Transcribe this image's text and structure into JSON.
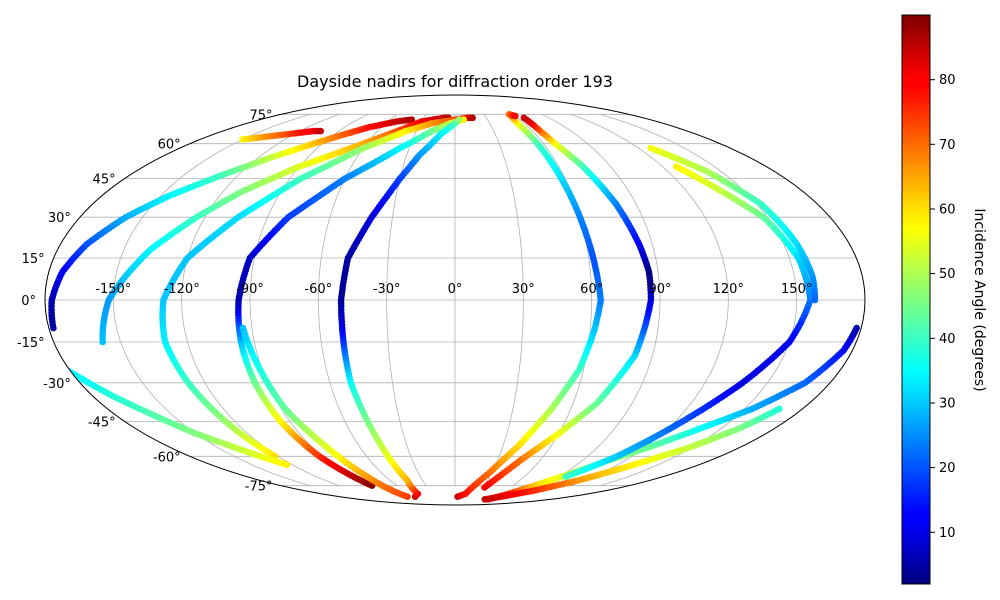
{
  "chart_data": {
    "type": "scatter",
    "title": "Dayside nadirs for diffraction order 193",
    "projection": "mollweide",
    "grid": true,
    "longitude_ticks": [
      -150,
      -120,
      -90,
      -60,
      -30,
      0,
      30,
      60,
      90,
      120,
      150
    ],
    "latitude_ticks": [
      -75,
      -60,
      -45,
      -30,
      -15,
      0,
      15,
      30,
      45,
      60,
      75
    ],
    "longitude_tick_labels": [
      "-150°",
      "-120°",
      "-90°",
      "-60°",
      "-30°",
      "0°",
      "30°",
      "60°",
      "90°",
      "120°",
      "150°"
    ],
    "latitude_tick_labels": [
      "-75°",
      "-60°",
      "-45°",
      "-30°",
      "-15°",
      "0°",
      "15°",
      "30°",
      "45°",
      "60°",
      "75°"
    ],
    "xlabel": "",
    "ylabel": "",
    "colorbar": {
      "label": "Incidence Angle (degrees)",
      "range": [
        2,
        90
      ],
      "colormap": "jet",
      "ticks": [
        10,
        20,
        30,
        40,
        50,
        60,
        70,
        80
      ],
      "tick_labels": [
        "10",
        "20",
        "30",
        "40",
        "50",
        "60",
        "70",
        "80"
      ]
    },
    "tracks": [
      {
        "points": [
          [
            -178,
            -10,
            5
          ],
          [
            -177,
            0,
            6
          ],
          [
            -174,
            10,
            12
          ],
          [
            -168,
            20,
            20
          ],
          [
            -158,
            30,
            28
          ],
          [
            -146,
            38,
            34
          ],
          [
            -130,
            46,
            40
          ],
          [
            -112,
            54,
            52
          ],
          [
            -96,
            60,
            62
          ],
          [
            -84,
            64,
            70
          ],
          [
            -70,
            68,
            78
          ],
          [
            -52,
            71,
            84
          ],
          [
            -40,
            72,
            86
          ]
        ]
      },
      {
        "points": [
          [
            -150,
            62,
            58
          ],
          [
            -140,
            63,
            65
          ],
          [
            -130,
            64,
            70
          ],
          [
            -120,
            65,
            76
          ],
          [
            -110,
            66,
            80
          ],
          [
            -104,
            66,
            84
          ]
        ]
      },
      {
        "points": [
          [
            -158,
            -15,
            30
          ],
          [
            -152,
            0,
            26
          ],
          [
            -146,
            8,
            30
          ],
          [
            -138,
            18,
            34
          ],
          [
            -124,
            30,
            40
          ],
          [
            -110,
            40,
            46
          ],
          [
            -90,
            50,
            54
          ],
          [
            -68,
            58,
            62
          ],
          [
            -48,
            65,
            70
          ],
          [
            -30,
            71,
            80
          ],
          [
            -10,
            73,
            84
          ],
          [
            -6,
            73,
            86
          ]
        ]
      },
      {
        "points": [
          [
            -122,
            -60,
            60
          ],
          [
            -125,
            -45,
            48
          ],
          [
            -128,
            -30,
            40
          ],
          [
            -130,
            -15,
            34
          ],
          [
            -128,
            0,
            30
          ],
          [
            -120,
            15,
            30
          ],
          [
            -104,
            30,
            32
          ],
          [
            -84,
            45,
            40
          ],
          [
            -60,
            58,
            48
          ],
          [
            -38,
            66,
            58
          ],
          [
            -20,
            70,
            66
          ],
          [
            0,
            72,
            72
          ],
          [
            12,
            73,
            80
          ],
          [
            17,
            73,
            86
          ]
        ]
      },
      {
        "points": [
          [
            -182,
            -12,
            4
          ],
          [
            -185,
            -22,
            32
          ],
          [
            -170,
            -35,
            38
          ],
          [
            -150,
            -50,
            46
          ],
          [
            -132,
            -60,
            55
          ],
          [
            -124,
            -64,
            58
          ]
        ]
      },
      {
        "points": [
          [
            -86,
            -75,
            90
          ],
          [
            -92,
            -60,
            76
          ],
          [
            -95,
            -45,
            58
          ],
          [
            -96,
            -30,
            45
          ],
          [
            -96,
            -15,
            30
          ],
          [
            -95,
            0,
            6
          ],
          [
            -92,
            15,
            8
          ],
          [
            -80,
            30,
            18
          ],
          [
            -60,
            45,
            24
          ],
          [
            -36,
            58,
            34
          ],
          [
            -18,
            66,
            44
          ],
          [
            -4,
            70,
            52
          ],
          [
            8,
            72,
            58
          ]
        ]
      },
      {
        "points": [
          [
            -74,
            -82,
            74
          ],
          [
            -76,
            -70,
            66
          ],
          [
            -80,
            -58,
            56
          ],
          [
            -88,
            -40,
            44
          ],
          [
            -92,
            -20,
            35
          ],
          [
            -94,
            -10,
            30
          ]
        ]
      },
      {
        "points": [
          [
            -62,
            -82,
            84
          ],
          [
            -50,
            -80,
            80
          ],
          [
            -44,
            -72,
            64
          ],
          [
            -46,
            -55,
            52
          ],
          [
            -50,
            -30,
            36
          ],
          [
            -50,
            -10,
            12
          ],
          [
            -50,
            0,
            4
          ],
          [
            -48,
            15,
            5
          ],
          [
            -40,
            30,
            10
          ],
          [
            -30,
            45,
            18
          ],
          [
            -22,
            55,
            26
          ],
          [
            -10,
            65,
            34
          ],
          [
            0,
            70,
            40
          ],
          [
            4,
            72,
            48
          ]
        ]
      },
      {
        "points": [
          [
            4,
            -82,
            84
          ],
          [
            14,
            -80,
            78
          ],
          [
            28,
            -68,
            70
          ],
          [
            40,
            -55,
            60
          ],
          [
            50,
            -40,
            50
          ],
          [
            58,
            -25,
            40
          ],
          [
            62,
            -10,
            30
          ],
          [
            64,
            0,
            24
          ],
          [
            62,
            15,
            20
          ],
          [
            60,
            30,
            24
          ],
          [
            58,
            45,
            32
          ],
          [
            56,
            60,
            40
          ],
          [
            54,
            70,
            56
          ],
          [
            56,
            75,
            70
          ],
          [
            60,
            74,
            80
          ]
        ]
      },
      {
        "points": [
          [
            62,
            -84,
            82
          ],
          [
            72,
            -80,
            76
          ],
          [
            84,
            -74,
            60
          ],
          [
            96,
            -68,
            52
          ],
          [
            108,
            -62,
            48
          ],
          [
            122,
            -56,
            44
          ],
          [
            138,
            -48,
            36
          ],
          [
            154,
            -40,
            28
          ],
          [
            168,
            -30,
            22
          ],
          [
            176,
            -18,
            14
          ],
          [
            178,
            -10,
            6
          ]
        ]
      },
      {
        "points": [
          [
            56,
            -84,
            84
          ],
          [
            72,
            -82,
            82
          ],
          [
            94,
            -78,
            76
          ],
          [
            114,
            -72,
            66
          ],
          [
            132,
            -64,
            58
          ],
          [
            148,
            -56,
            52
          ],
          [
            160,
            -48,
            46
          ],
          [
            168,
            -40,
            38
          ]
        ]
      },
      {
        "points": [
          [
            32,
            -76,
            80
          ],
          [
            46,
            -62,
            70
          ],
          [
            60,
            -50,
            56
          ],
          [
            72,
            -38,
            44
          ],
          [
            82,
            -20,
            32
          ],
          [
            86,
            0,
            10
          ],
          [
            86,
            10,
            2
          ],
          [
            84,
            20,
            12
          ],
          [
            80,
            35,
            24
          ],
          [
            74,
            50,
            40
          ],
          [
            68,
            60,
            56
          ],
          [
            66,
            66,
            70
          ],
          [
            66,
            70,
            80
          ],
          [
            66,
            73,
            84
          ]
        ]
      },
      {
        "points": [
          [
            128,
            50,
            58
          ],
          [
            138,
            40,
            52
          ],
          [
            148,
            30,
            44
          ],
          [
            154,
            15,
            32
          ],
          [
            156,
            0,
            24
          ],
          [
            150,
            -15,
            12
          ],
          [
            138,
            -30,
            10
          ],
          [
            124,
            -45,
            20
          ],
          [
            110,
            -60,
            30
          ],
          [
            96,
            -70,
            40
          ]
        ]
      },
      {
        "points": [
          [
            128,
            58,
            56
          ],
          [
            142,
            48,
            50
          ],
          [
            152,
            35,
            40
          ],
          [
            156,
            20,
            32
          ],
          [
            158,
            8,
            26
          ],
          [
            158,
            0,
            22
          ]
        ]
      }
    ]
  }
}
